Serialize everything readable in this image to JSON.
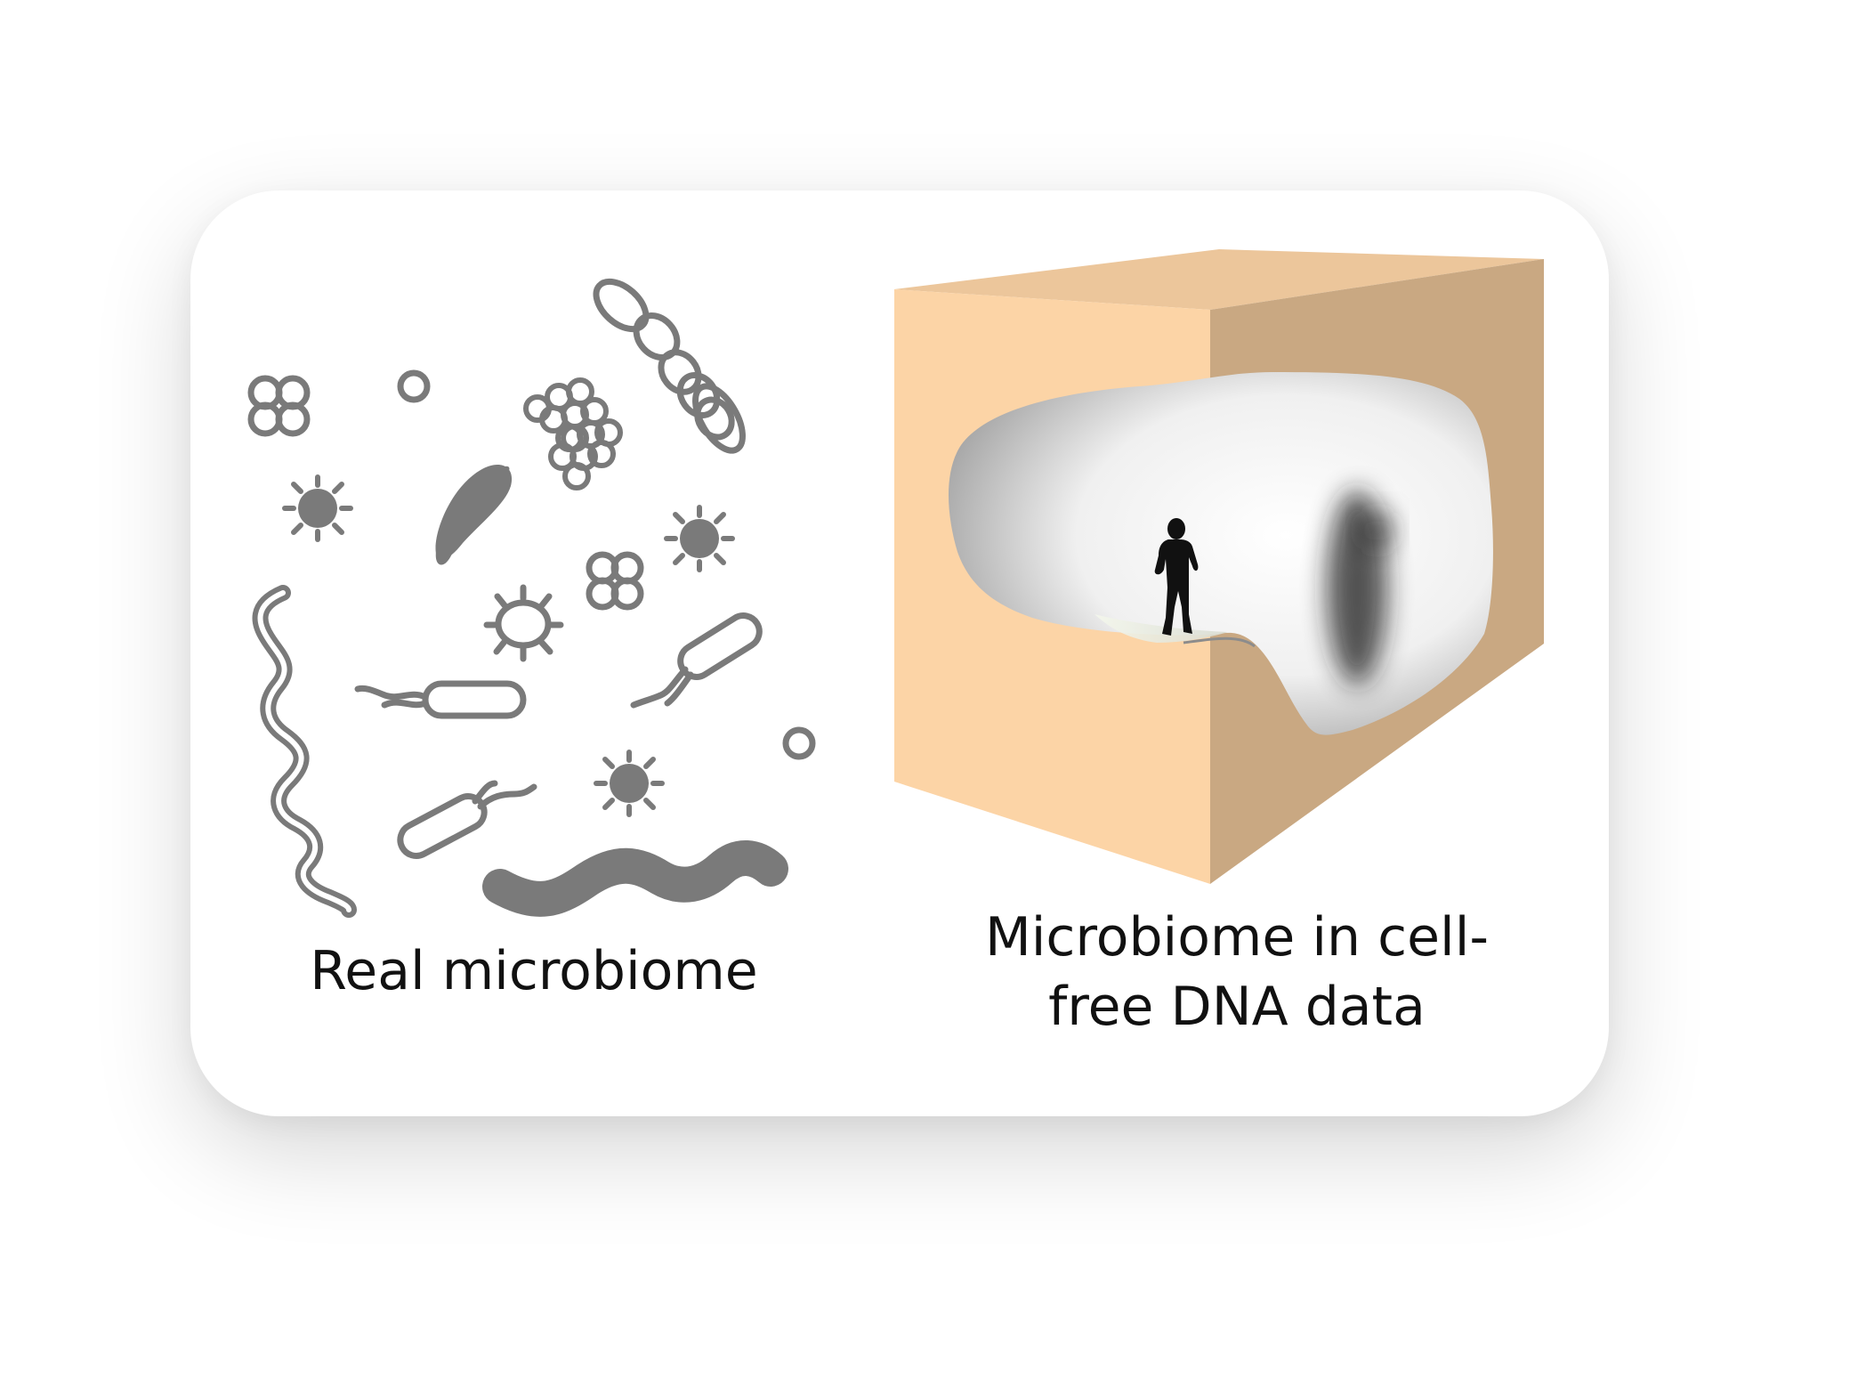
{
  "panels": {
    "left": {
      "label": "Real microbiome"
    },
    "right": {
      "label_line1": "Microbiome in cell-",
      "label_line2": "free DNA data"
    }
  },
  "colors": {
    "microbe": "#7a7a7a",
    "box_front": "#fcd4a6",
    "box_top": "#ecc69b",
    "box_side": "#c9a882",
    "cave": "#d9d9d9",
    "silhouette": "#111111"
  },
  "icons": [
    "tetrad-cocci-icon",
    "coccus-icon",
    "streptococci-chain-icon",
    "staphylococci-cluster-icon",
    "comma-bacterium-icon",
    "spiky-virus-icon",
    "spirochete-icon",
    "flagellated-bacillus-icon",
    "spirillum-icon",
    "human-silhouette-icon",
    "cave-box-icon"
  ]
}
